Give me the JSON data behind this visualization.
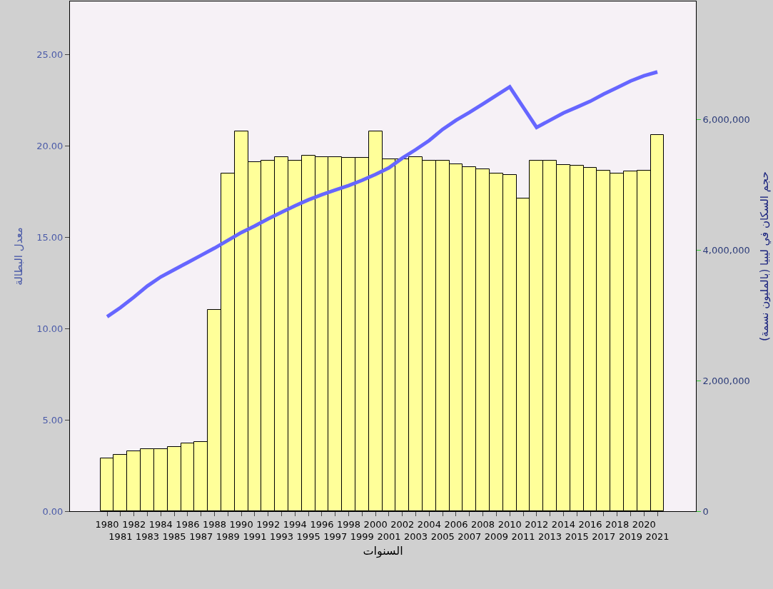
{
  "chart_data": {
    "type": "bar",
    "xlabel": "السنوات",
    "ylabel": "معدل البطالة",
    "y2label": "حجم السكان في ليبيا (بالمليون نسمة)",
    "categories": [
      "1980",
      "1981",
      "1982",
      "1983",
      "1984",
      "1985",
      "1986",
      "1987",
      "1988",
      "1989",
      "1990",
      "1991",
      "1992",
      "1993",
      "1994",
      "1995",
      "1996",
      "1997",
      "1998",
      "1999",
      "2000",
      "2001",
      "2002",
      "2003",
      "2004",
      "2005",
      "2006",
      "2007",
      "2008",
      "2009",
      "2010",
      "2011",
      "2012",
      "2013",
      "2014",
      "2015",
      "2016",
      "2017",
      "2018",
      "2019",
      "2020",
      "2021"
    ],
    "series": [
      {
        "color": "#ffff99",
        "values": [
          2.9,
          3.1,
          3.3,
          3.4,
          3.4,
          3.5,
          3.7,
          3.8,
          11.0,
          18.5,
          20.8,
          19.1,
          19.2,
          19.4,
          19.2,
          19.45,
          19.4,
          19.4,
          19.35,
          19.35,
          20.8,
          19.25,
          19.25,
          19.4,
          19.2,
          19.2,
          19.0,
          18.85,
          18.7,
          18.5,
          18.4,
          17.1,
          19.2,
          19.2,
          18.95,
          18.9,
          18.8,
          18.65,
          18.5,
          18.6,
          18.65,
          20.6
        ]
      },
      {
        "type": "line",
        "axis": "y2",
        "color": "#6666ff",
        "values": [
          2980000,
          3120000,
          3280000,
          3450000,
          3590000,
          3700000,
          3810000,
          3920000,
          4030000,
          4150000,
          4270000,
          4370000,
          4480000,
          4580000,
          4680000,
          4770000,
          4850000,
          4920000,
          4990000,
          5070000,
          5160000,
          5260000,
          5410000,
          5540000,
          5680000,
          5850000,
          5990000,
          6110000,
          6240000,
          6370000,
          6500000,
          6190000,
          5880000,
          5990000,
          6100000,
          6190000,
          6280000,
          6390000,
          6490000,
          6590000,
          6670000,
          6730000
        ]
      }
    ],
    "ylim": [
      0,
      27.9
    ],
    "yticks": [
      {
        "value": 0,
        "label": "0.00"
      },
      {
        "value": 5,
        "label": "5.00"
      },
      {
        "value": 10,
        "label": "10.00"
      },
      {
        "value": 15,
        "label": "15.00"
      },
      {
        "value": 20,
        "label": "20.00"
      },
      {
        "value": 25,
        "label": "25.00"
      }
    ],
    "y2lim": [
      0,
      7810000
    ],
    "y2ticks": [
      0,
      {
        "value": 2000000,
        "label": "2,000,000"
      },
      {
        "value": 4000000,
        "label": "4,000,000"
      },
      {
        "value": 6000000,
        "label": "6,000,000"
      }
    ],
    "marker": "none",
    "line_style": "solid"
  }
}
